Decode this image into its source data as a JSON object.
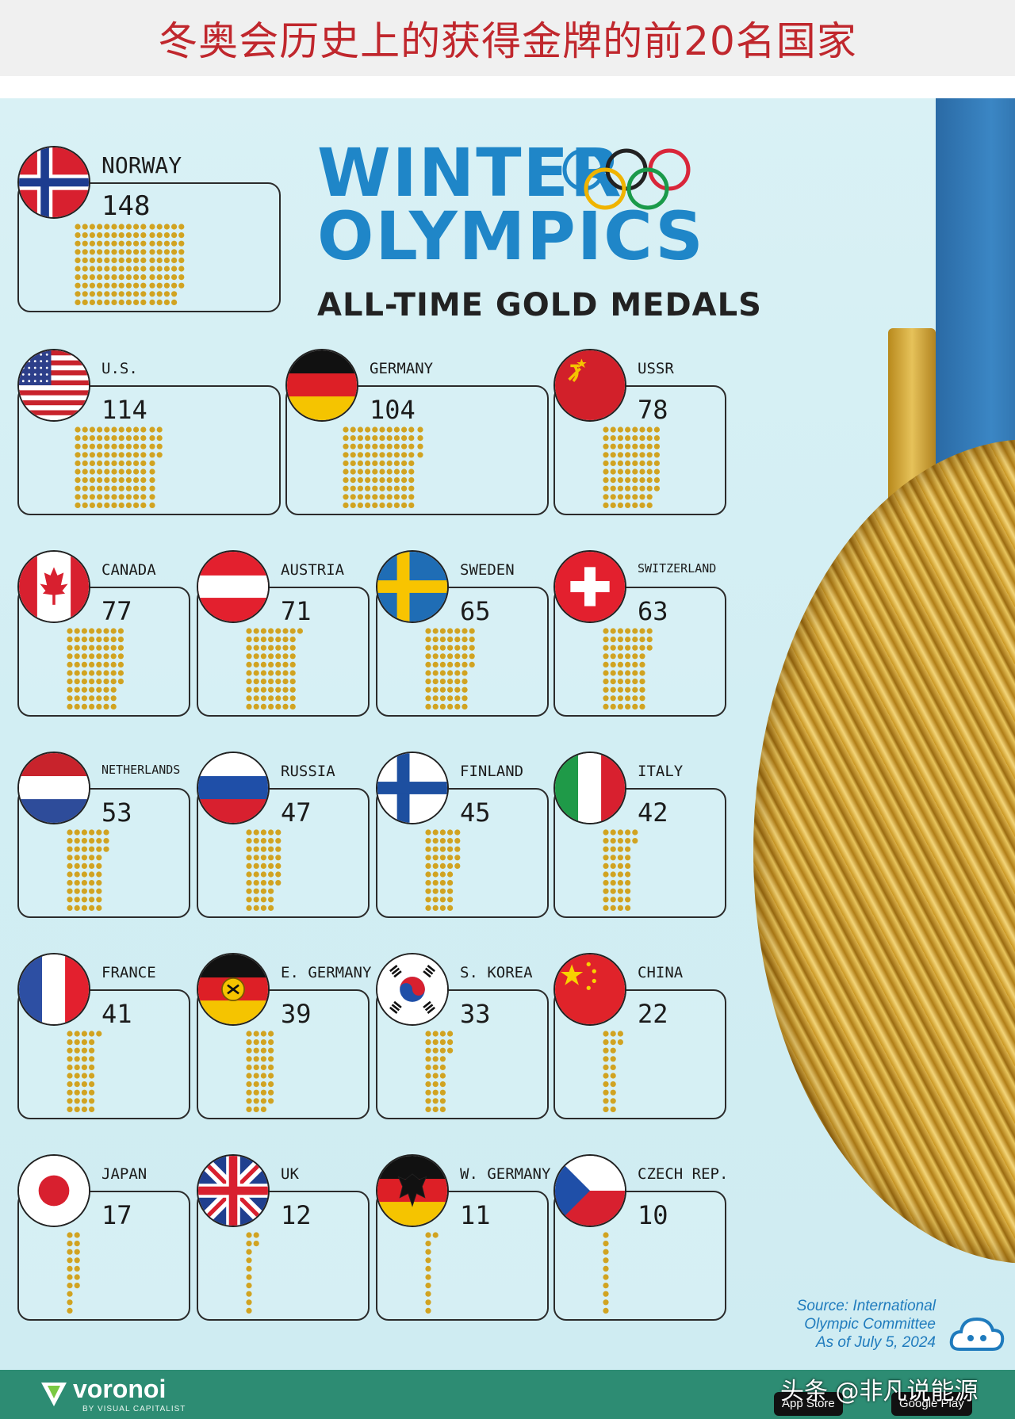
{
  "banner_title": "冬奥会历史上的获得金牌的前20名国家",
  "title": {
    "line1": "WINTER",
    "line2": "OLYMPICS",
    "line3": "ALL-TIME GOLD MEDALS"
  },
  "colors": {
    "title_blue": "#1f86c8",
    "medal_gold": "#d1a321",
    "banner_red": "#c0272d",
    "footer_green": "#2d8c73"
  },
  "chart_data": {
    "type": "bar",
    "title": "WINTER OLYMPICS ALL-TIME GOLD MEDALS",
    "categories": [
      "NORWAY",
      "U.S.",
      "GERMANY",
      "USSR",
      "CANADA",
      "AUSTRIA",
      "SWEDEN",
      "SWITZERLAND",
      "NETHERLANDS",
      "RUSSIA",
      "FINLAND",
      "ITALY",
      "FRANCE",
      "E. GERMANY",
      "S. KOREA",
      "CHINA",
      "JAPAN",
      "UK",
      "W. GERMANY",
      "CZECH REP."
    ],
    "values": [
      148,
      114,
      104,
      78,
      77,
      71,
      65,
      63,
      53,
      47,
      45,
      42,
      41,
      39,
      33,
      22,
      17,
      12,
      11,
      10
    ],
    "unit": "gold medals (each dot = 1 medal)"
  },
  "countries": [
    {
      "name": "NORWAY",
      "value": "148",
      "flag": "norway-flag"
    },
    {
      "name": "U.S.",
      "value": "114",
      "flag": "usa-flag"
    },
    {
      "name": "GERMANY",
      "value": "104",
      "flag": "germany-flag"
    },
    {
      "name": "USSR",
      "value": "78",
      "flag": "ussr-flag"
    },
    {
      "name": "CANADA",
      "value": "77",
      "flag": "canada-flag"
    },
    {
      "name": "AUSTRIA",
      "value": "71",
      "flag": "austria-flag"
    },
    {
      "name": "SWEDEN",
      "value": "65",
      "flag": "sweden-flag"
    },
    {
      "name": "SWITZERLAND",
      "value": "63",
      "flag": "switzerland-flag"
    },
    {
      "name": "NETHERLANDS",
      "value": "53",
      "flag": "netherlands-flag"
    },
    {
      "name": "RUSSIA",
      "value": "47",
      "flag": "russia-flag"
    },
    {
      "name": "FINLAND",
      "value": "45",
      "flag": "finland-flag"
    },
    {
      "name": "ITALY",
      "value": "42",
      "flag": "italy-flag"
    },
    {
      "name": "FRANCE",
      "value": "41",
      "flag": "france-flag"
    },
    {
      "name": "E. GERMANY",
      "value": "39",
      "flag": "east-germany-flag"
    },
    {
      "name": "S. KOREA",
      "value": "33",
      "flag": "south-korea-flag"
    },
    {
      "name": "CHINA",
      "value": "22",
      "flag": "china-flag"
    },
    {
      "name": "JAPAN",
      "value": "17",
      "flag": "japan-flag"
    },
    {
      "name": "UK",
      "value": "12",
      "flag": "uk-flag"
    },
    {
      "name": "W. GERMANY",
      "value": "11",
      "flag": "west-germany-flag"
    },
    {
      "name": "CZECH REP.",
      "value": "10",
      "flag": "czech-flag"
    }
  ],
  "source": {
    "line1": "Source: International",
    "line2": "Olympic Committee",
    "line3": "As of July 5, 2024"
  },
  "footer": {
    "brand": "voronoi",
    "brand_sub": "BY VISUAL CAPITALIST",
    "watermark": "头条 @非凡说能源",
    "app_store": "App Store",
    "google_play": "Google Play"
  }
}
